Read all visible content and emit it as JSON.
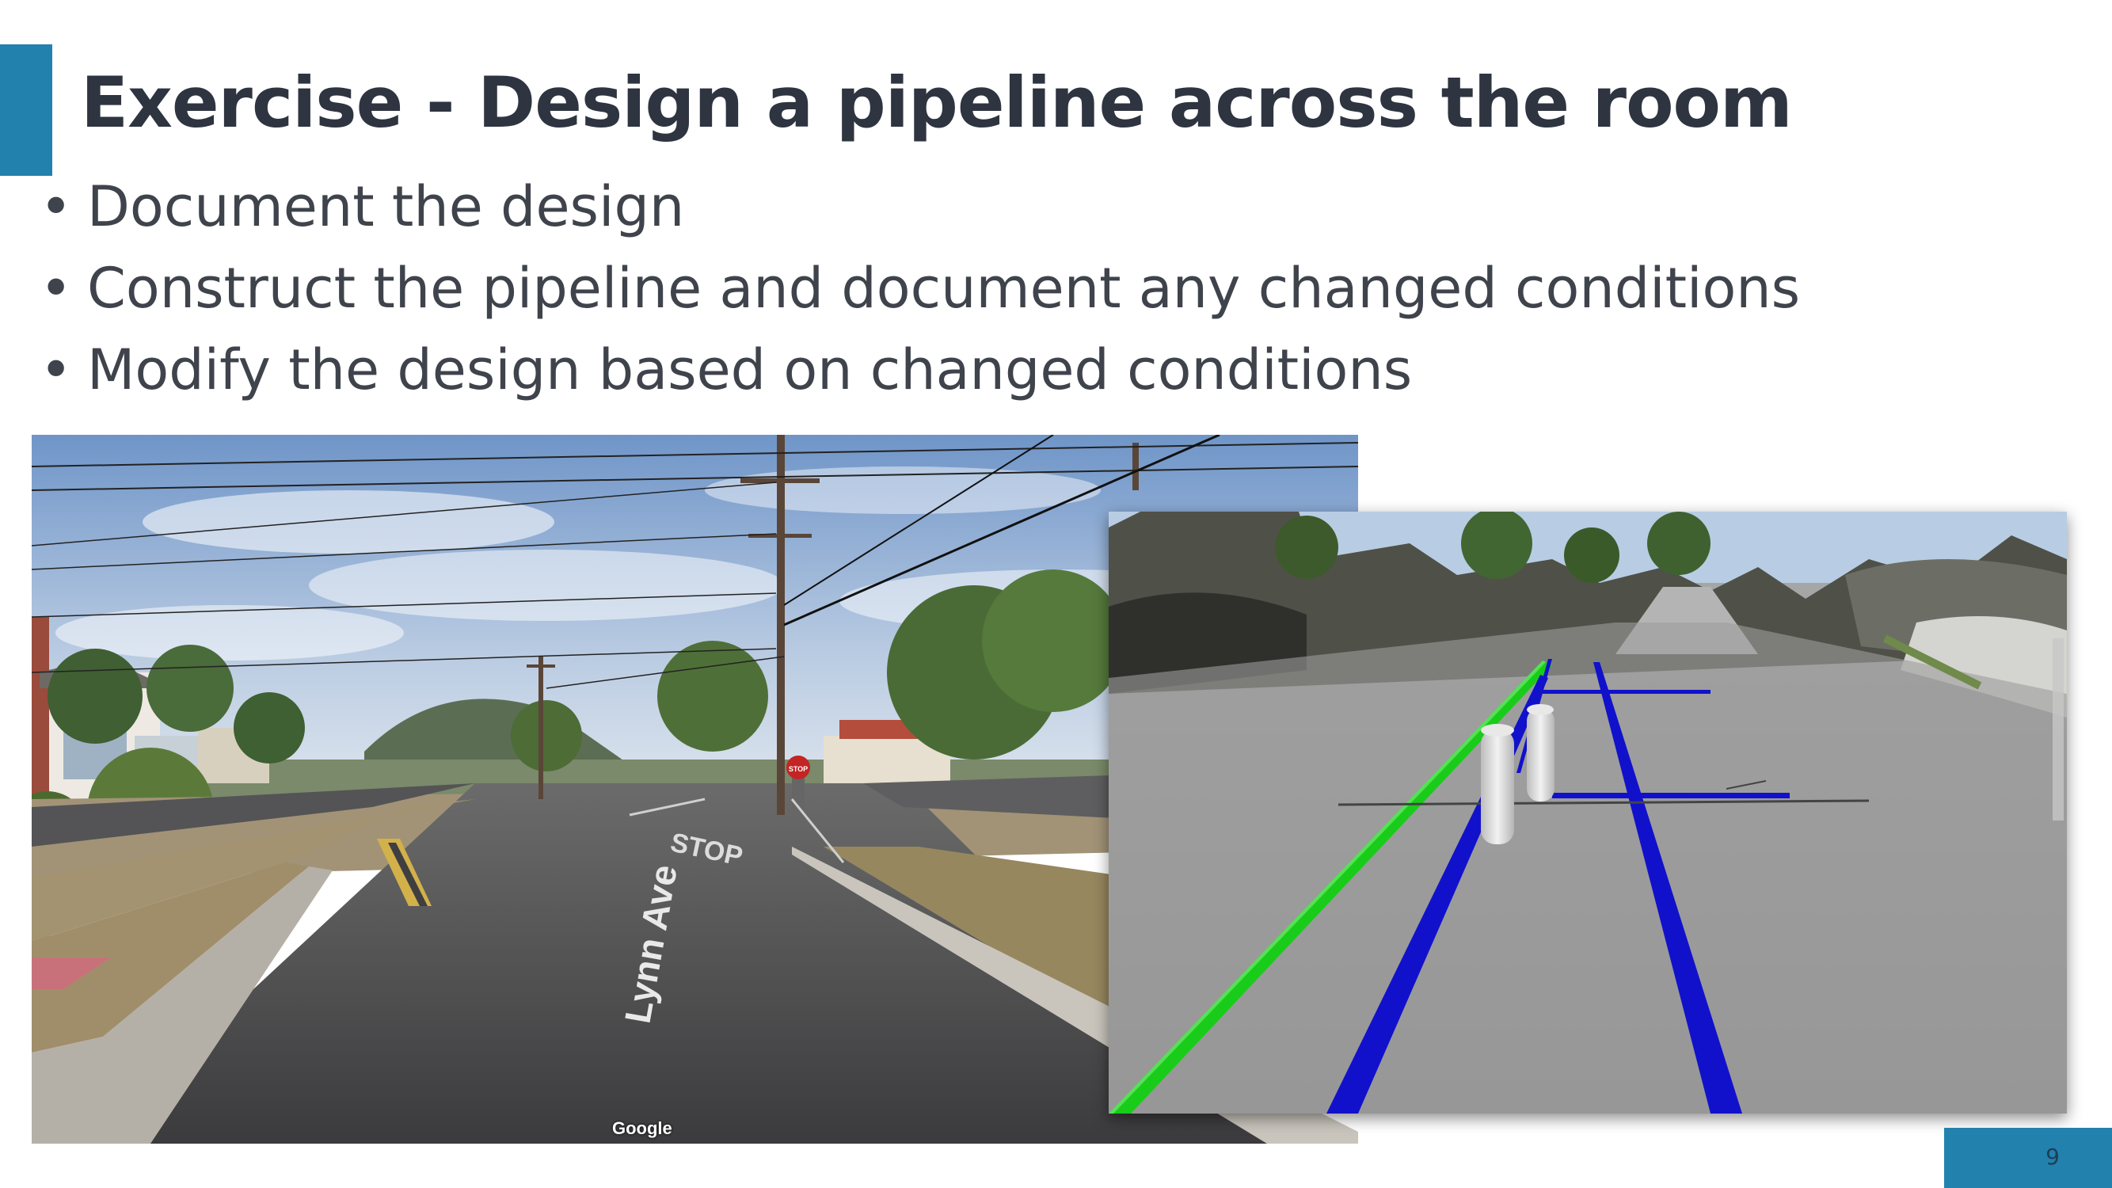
{
  "slide": {
    "title": "Exercise - Design a pipeline across the room",
    "bullets": [
      "Document the design",
      "Construct the pipeline and document any changed conditions",
      "Modify the design based on changed conditions"
    ],
    "page_number": "9",
    "accent_color": "#2381AE"
  },
  "street_photo": {
    "street_marking": "Lynn Ave",
    "road_marking": "STOP",
    "stop_sign": "STOP",
    "watermark": "Google"
  },
  "pointcloud_view": {
    "pipe_colors": {
      "existing_utility": "#19CC19",
      "design_pipe": "#1111CC"
    }
  }
}
